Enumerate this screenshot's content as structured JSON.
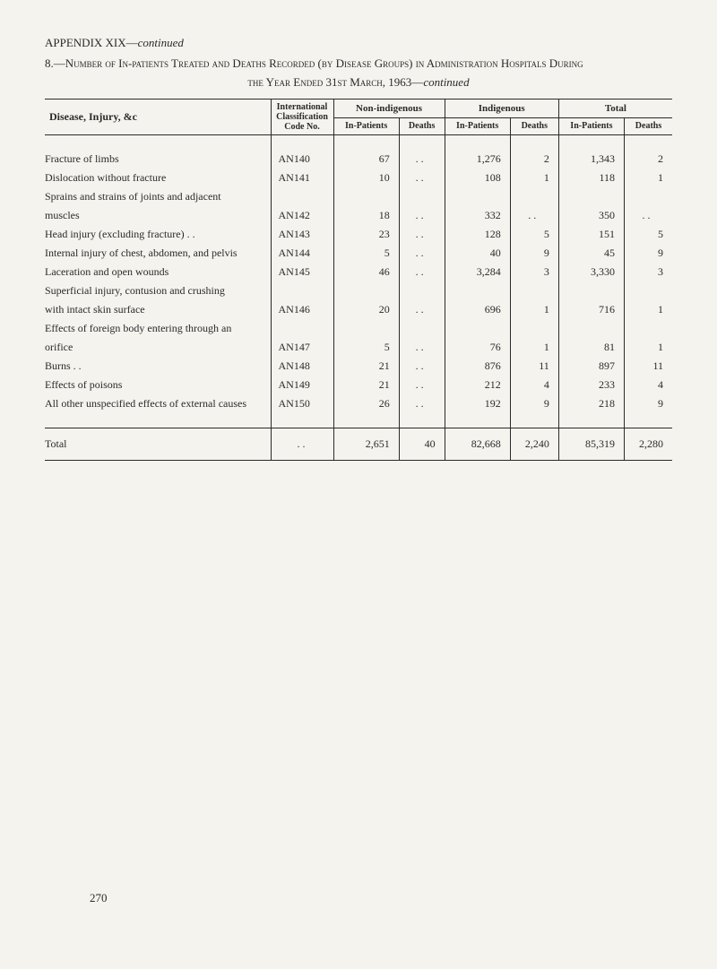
{
  "appendix": {
    "prefix": "APPENDIX XIX—",
    "suffix": "continued"
  },
  "title": {
    "num": "8.—",
    "main1": "Number of In-patients Treated and Deaths Recorded (by Disease Groups) in Administration Hospitals During",
    "main2": "the Year Ended 31st March, 1963—",
    "suffix": "continued"
  },
  "headers": {
    "disease": "Disease, Injury, &c",
    "code": "International Classification Code No.",
    "nonindig": "Non-indigenous",
    "indig": "Indigenous",
    "total": "Total",
    "inpatients": "In-Patients",
    "deaths": "Deaths"
  },
  "rows": [
    {
      "disease": "Fracture of limbs",
      "code": "AN140",
      "ni_ip": "67",
      "ni_d": ". .",
      "i_ip": "1,276",
      "i_d": "2",
      "t_ip": "1,343",
      "t_d": "2"
    },
    {
      "disease": "Dislocation without fracture",
      "code": "AN141",
      "ni_ip": "10",
      "ni_d": ". .",
      "i_ip": "108",
      "i_d": "1",
      "t_ip": "118",
      "t_d": "1"
    },
    {
      "disease": "Sprains and strains of joints and adjacent",
      "continuation": true
    },
    {
      "disease": "muscles",
      "indent": true,
      "code": "AN142",
      "ni_ip": "18",
      "ni_d": ". .",
      "i_ip": "332",
      "i_d": ". .",
      "t_ip": "350",
      "t_d": ". ."
    },
    {
      "disease": "Head injury (excluding fracture)  . .",
      "code": "AN143",
      "ni_ip": "23",
      "ni_d": ". .",
      "i_ip": "128",
      "i_d": "5",
      "t_ip": "151",
      "t_d": "5"
    },
    {
      "disease": "Internal injury of chest, abdomen, and pelvis",
      "code": "AN144",
      "ni_ip": "5",
      "ni_d": ". .",
      "i_ip": "40",
      "i_d": "9",
      "t_ip": "45",
      "t_d": "9"
    },
    {
      "disease": "Laceration and open wounds",
      "code": "AN145",
      "ni_ip": "46",
      "ni_d": ". .",
      "i_ip": "3,284",
      "i_d": "3",
      "t_ip": "3,330",
      "t_d": "3"
    },
    {
      "disease": "Superficial injury, contusion and crushing",
      "continuation": true
    },
    {
      "disease": "with intact skin surface",
      "indent": true,
      "code": "AN146",
      "ni_ip": "20",
      "ni_d": ". .",
      "i_ip": "696",
      "i_d": "1",
      "t_ip": "716",
      "t_d": "1"
    },
    {
      "disease": "Effects of foreign body entering through an",
      "continuation": true
    },
    {
      "disease": "orifice",
      "indent": true,
      "code": "AN147",
      "ni_ip": "5",
      "ni_d": ". .",
      "i_ip": "76",
      "i_d": "1",
      "t_ip": "81",
      "t_d": "1"
    },
    {
      "disease": "Burns . .",
      "code": "AN148",
      "ni_ip": "21",
      "ni_d": ". .",
      "i_ip": "876",
      "i_d": "11",
      "t_ip": "897",
      "t_d": "11"
    },
    {
      "disease": "Effects of poisons",
      "code": "AN149",
      "ni_ip": "21",
      "ni_d": ". .",
      "i_ip": "212",
      "i_d": "4",
      "t_ip": "233",
      "t_d": "4"
    },
    {
      "disease": "All other unspecified effects of external causes",
      "code": "AN150",
      "ni_ip": "26",
      "ni_d": ". .",
      "i_ip": "192",
      "i_d": "9",
      "t_ip": "218",
      "t_d": "9"
    }
  ],
  "total_row": {
    "label": "Total",
    "code": ". .",
    "ni_ip": "2,651",
    "ni_d": "40",
    "i_ip": "82,668",
    "i_d": "2,240",
    "t_ip": "85,319",
    "t_d": "2,280"
  },
  "page_number": "270",
  "colors": {
    "background": "#f5f3ee",
    "text": "#2a2a2a",
    "rule": "#2a2a2a"
  },
  "typography": {
    "body_font": "Times New Roman",
    "body_size_pt": 12,
    "header_size_pt": 10
  }
}
